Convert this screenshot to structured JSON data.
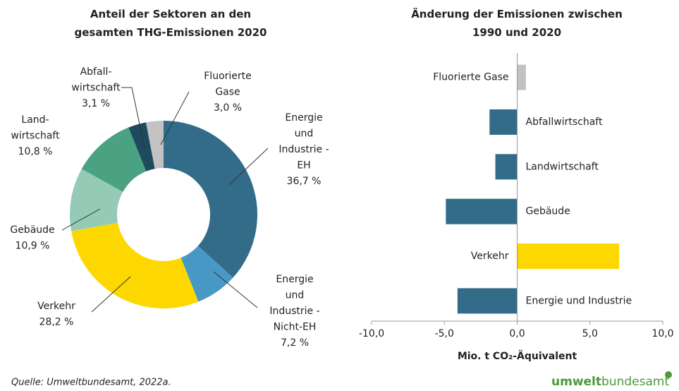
{
  "chart_data": [
    {
      "type": "donut",
      "title": "Anteil der Sektoren an den\ngesamten THG-Emissionen 2020",
      "categories": [
        "Energie\nund\nIndustrie -\nEH",
        "Energie\nund\nIndustrie -\nNicht-EH",
        "Verkehr",
        "Gebäude",
        "Land-\nwirtschaft",
        "Abfall-\nwirtschaft",
        "Fluorierte\nGase"
      ],
      "values": [
        36.7,
        7.2,
        28.2,
        10.9,
        10.8,
        3.1,
        3.0
      ],
      "value_labels": [
        "36,7 %",
        "7,2 %",
        "28,2 %",
        "10,9 %",
        "10,8 %",
        "3,1 %",
        "3,0 %"
      ],
      "colors": [
        "#336c88",
        "#4898c6",
        "#fcd800",
        "#95cbb6",
        "#4aa283",
        "#1e4a5d",
        "#c2c2c2"
      ]
    },
    {
      "type": "hbar",
      "title": "Änderung der Emissionen zwischen\n1990 und 2020",
      "categories": [
        "Fluorierte Gase",
        "Abfallwirtschaft",
        "Landwirtschaft",
        "Gebäude",
        "Verkehr",
        "Energie und Industrie"
      ],
      "values": [
        0.6,
        -1.9,
        -1.5,
        -4.9,
        7.0,
        -4.1
      ],
      "colors": [
        "#c2c2c2",
        "#336c88",
        "#336c88",
        "#336c88",
        "#fcd800",
        "#336c88"
      ],
      "xlim": [
        -10,
        10
      ],
      "xticks": [
        {
          "value": -10,
          "label": "-10,0"
        },
        {
          "value": -5,
          "label": "-5,0"
        },
        {
          "value": 0,
          "label": "0,0"
        },
        {
          "value": 5,
          "label": "5,0"
        },
        {
          "value": 10,
          "label": "10,0"
        }
      ],
      "xlabel": "Mio. t CO₂-Äquivalent"
    }
  ],
  "source": "Quelle: Umweltbundesamt, 2022a.",
  "logo": [
    "umwelt",
    "bundesamt"
  ]
}
